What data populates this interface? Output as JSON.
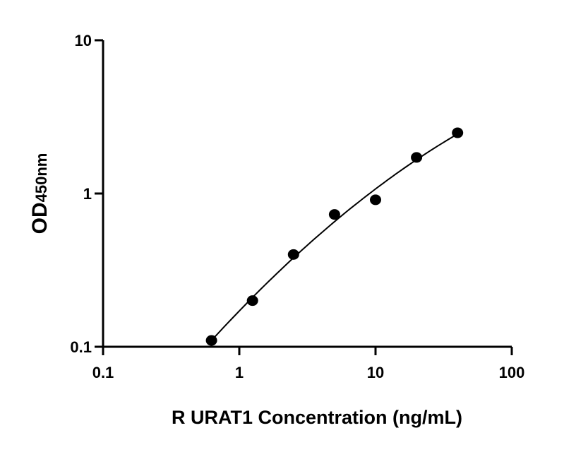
{
  "chart_data": {
    "type": "scatter",
    "title": "",
    "xlabel": "R URAT1 Concentration (ng/mL)",
    "ylabel": "OD450nm",
    "ylabel_parts": [
      "OD",
      "450nm"
    ],
    "x_scale": "log",
    "y_scale": "log",
    "xlim": [
      0.1,
      100
    ],
    "ylim": [
      0.1,
      10
    ],
    "x_ticks": [
      0.1,
      1,
      10,
      100
    ],
    "x_tick_labels": [
      "0.1",
      "1",
      "10",
      "100"
    ],
    "y_ticks": [
      0.1,
      1,
      10
    ],
    "y_tick_labels": [
      "0.1",
      "1",
      "10"
    ],
    "grid": false,
    "fit_line": true,
    "colors": {
      "points": "#000000",
      "line": "#000000"
    },
    "series": [
      {
        "x": [
          0.625,
          1.25,
          2.5,
          5,
          10,
          20,
          40
        ],
        "y": [
          0.11,
          0.2,
          0.4,
          0.73,
          0.91,
          1.72,
          2.49
        ]
      }
    ]
  }
}
